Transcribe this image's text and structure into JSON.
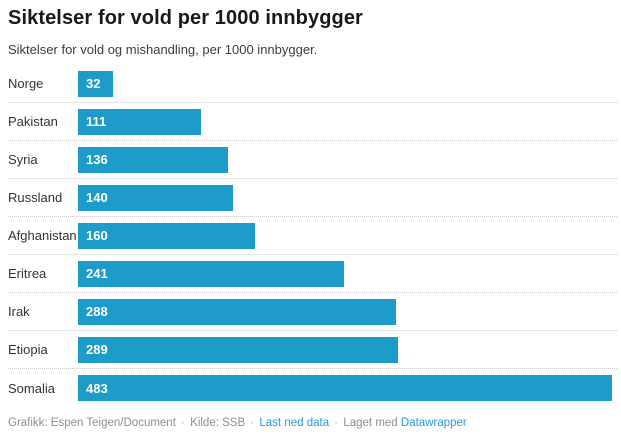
{
  "header": {
    "title": "Siktelser for vold per 1000 innbygger",
    "subtitle": "Siktelser for vold og mishandling, per 1000 innbygger."
  },
  "chart_data": {
    "type": "bar",
    "orientation": "horizontal",
    "categories": [
      "Norge",
      "Pakistan",
      "Syria",
      "Russland",
      "Afghanistan",
      "Eritrea",
      "Irak",
      "Etiopia",
      "Somalia"
    ],
    "values": [
      32,
      111,
      136,
      140,
      160,
      241,
      288,
      289,
      483
    ],
    "title": "Siktelser for vold per 1000 innbygger",
    "subtitle": "Siktelser for vold og mishandling, per 1000 innbygger.",
    "xlabel": "",
    "ylabel": "",
    "xlim": [
      0,
      483
    ],
    "value_labels": "inside-left",
    "grid": false,
    "legend": "none"
  },
  "colors": {
    "bar": "#1d9cc9",
    "link": "#2a9bd4",
    "footer_text": "#8e8e8e"
  },
  "footer": {
    "credit": "Grafikk: Espen Teigen/Document",
    "source": "Kilde: SSB",
    "download_link": "Last ned data",
    "made_with": "Laget med",
    "tool_link": "Datawrapper",
    "separator": "·"
  }
}
